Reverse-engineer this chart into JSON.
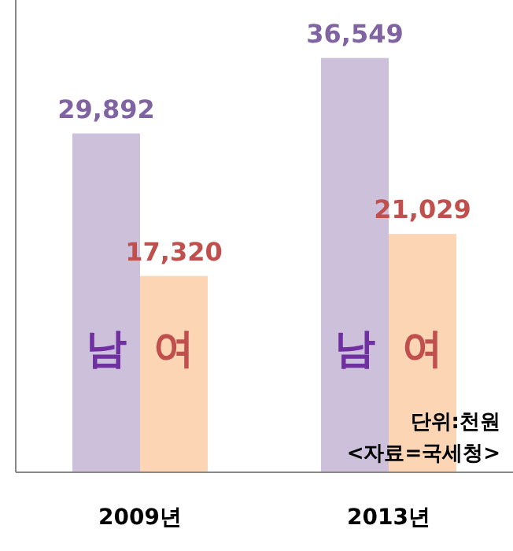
{
  "chart_data": {
    "type": "bar",
    "categories": [
      "2009년",
      "2013년"
    ],
    "series": [
      {
        "name": "남",
        "color": "#ccc0da",
        "values": [
          29892,
          36549
        ],
        "value_labels": [
          "29,892",
          "36,549"
        ]
      },
      {
        "name": "여",
        "color": "#fcd5b5",
        "values": [
          17320,
          21029
        ],
        "value_labels": [
          "17,320",
          "21,029"
        ]
      }
    ],
    "legend": false,
    "annotations": [
      "단위:천원",
      "<자료=국세청>"
    ]
  }
}
